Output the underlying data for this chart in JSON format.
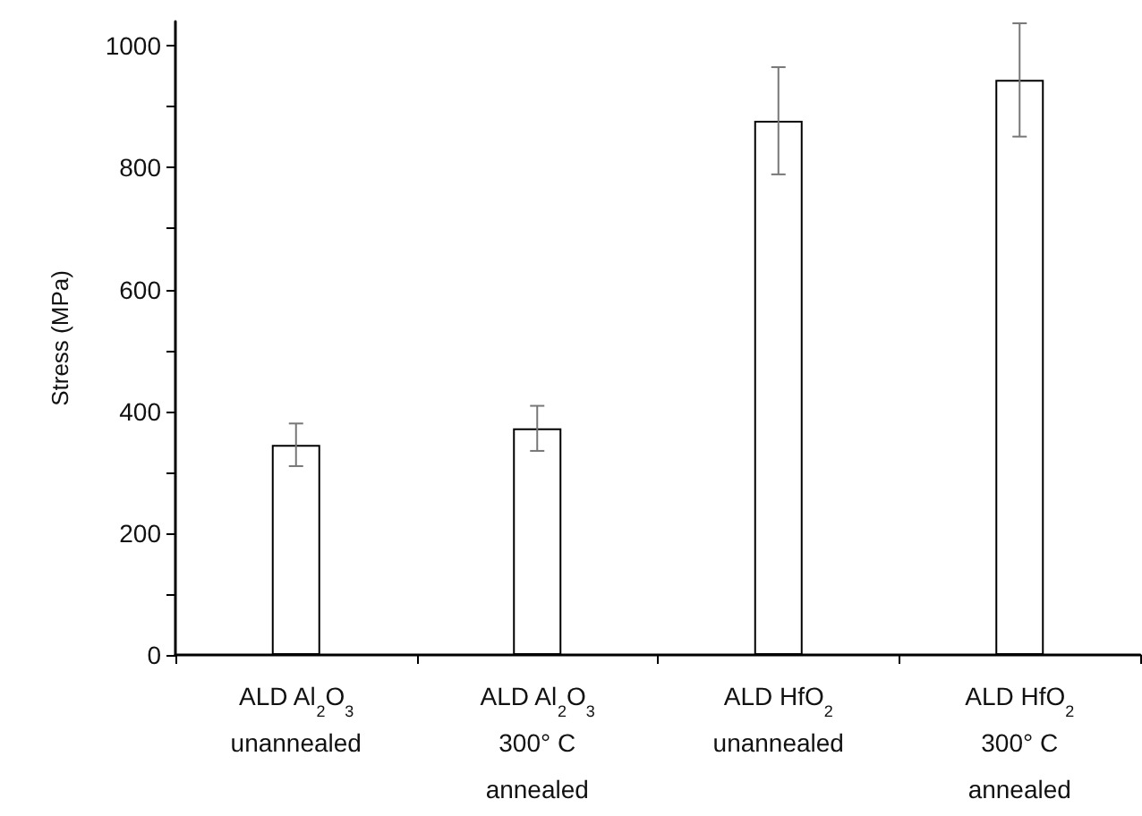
{
  "chart_data": {
    "type": "bar",
    "ylabel": "Stress (MPa)",
    "categories": [
      "ALD Al$_{2}$O$_{3}$\nunannealed",
      "ALD Al$_{2}$O$_{3}$\n300° C\nannealed",
      "ALD HfO$_{2}$\nunannealed",
      "ALD HfO$_{2}$\n300° C\nannealed"
    ],
    "values": [
      345,
      372,
      877,
      944
    ],
    "errors": [
      35,
      37,
      88,
      93
    ],
    "color": "#ffffff",
    "ylim": [
      0,
      1040
    ],
    "yticks": [
      0,
      {
        "value": 100,
        "label": null
      },
      200,
      {
        "value": 300,
        "label": null
      },
      400,
      {
        "value": 500,
        "label": null
      },
      600,
      {
        "value": 700,
        "label": null
      },
      800,
      {
        "value": 900,
        "label": null
      },
      1000
    ],
    "grid": false
  }
}
